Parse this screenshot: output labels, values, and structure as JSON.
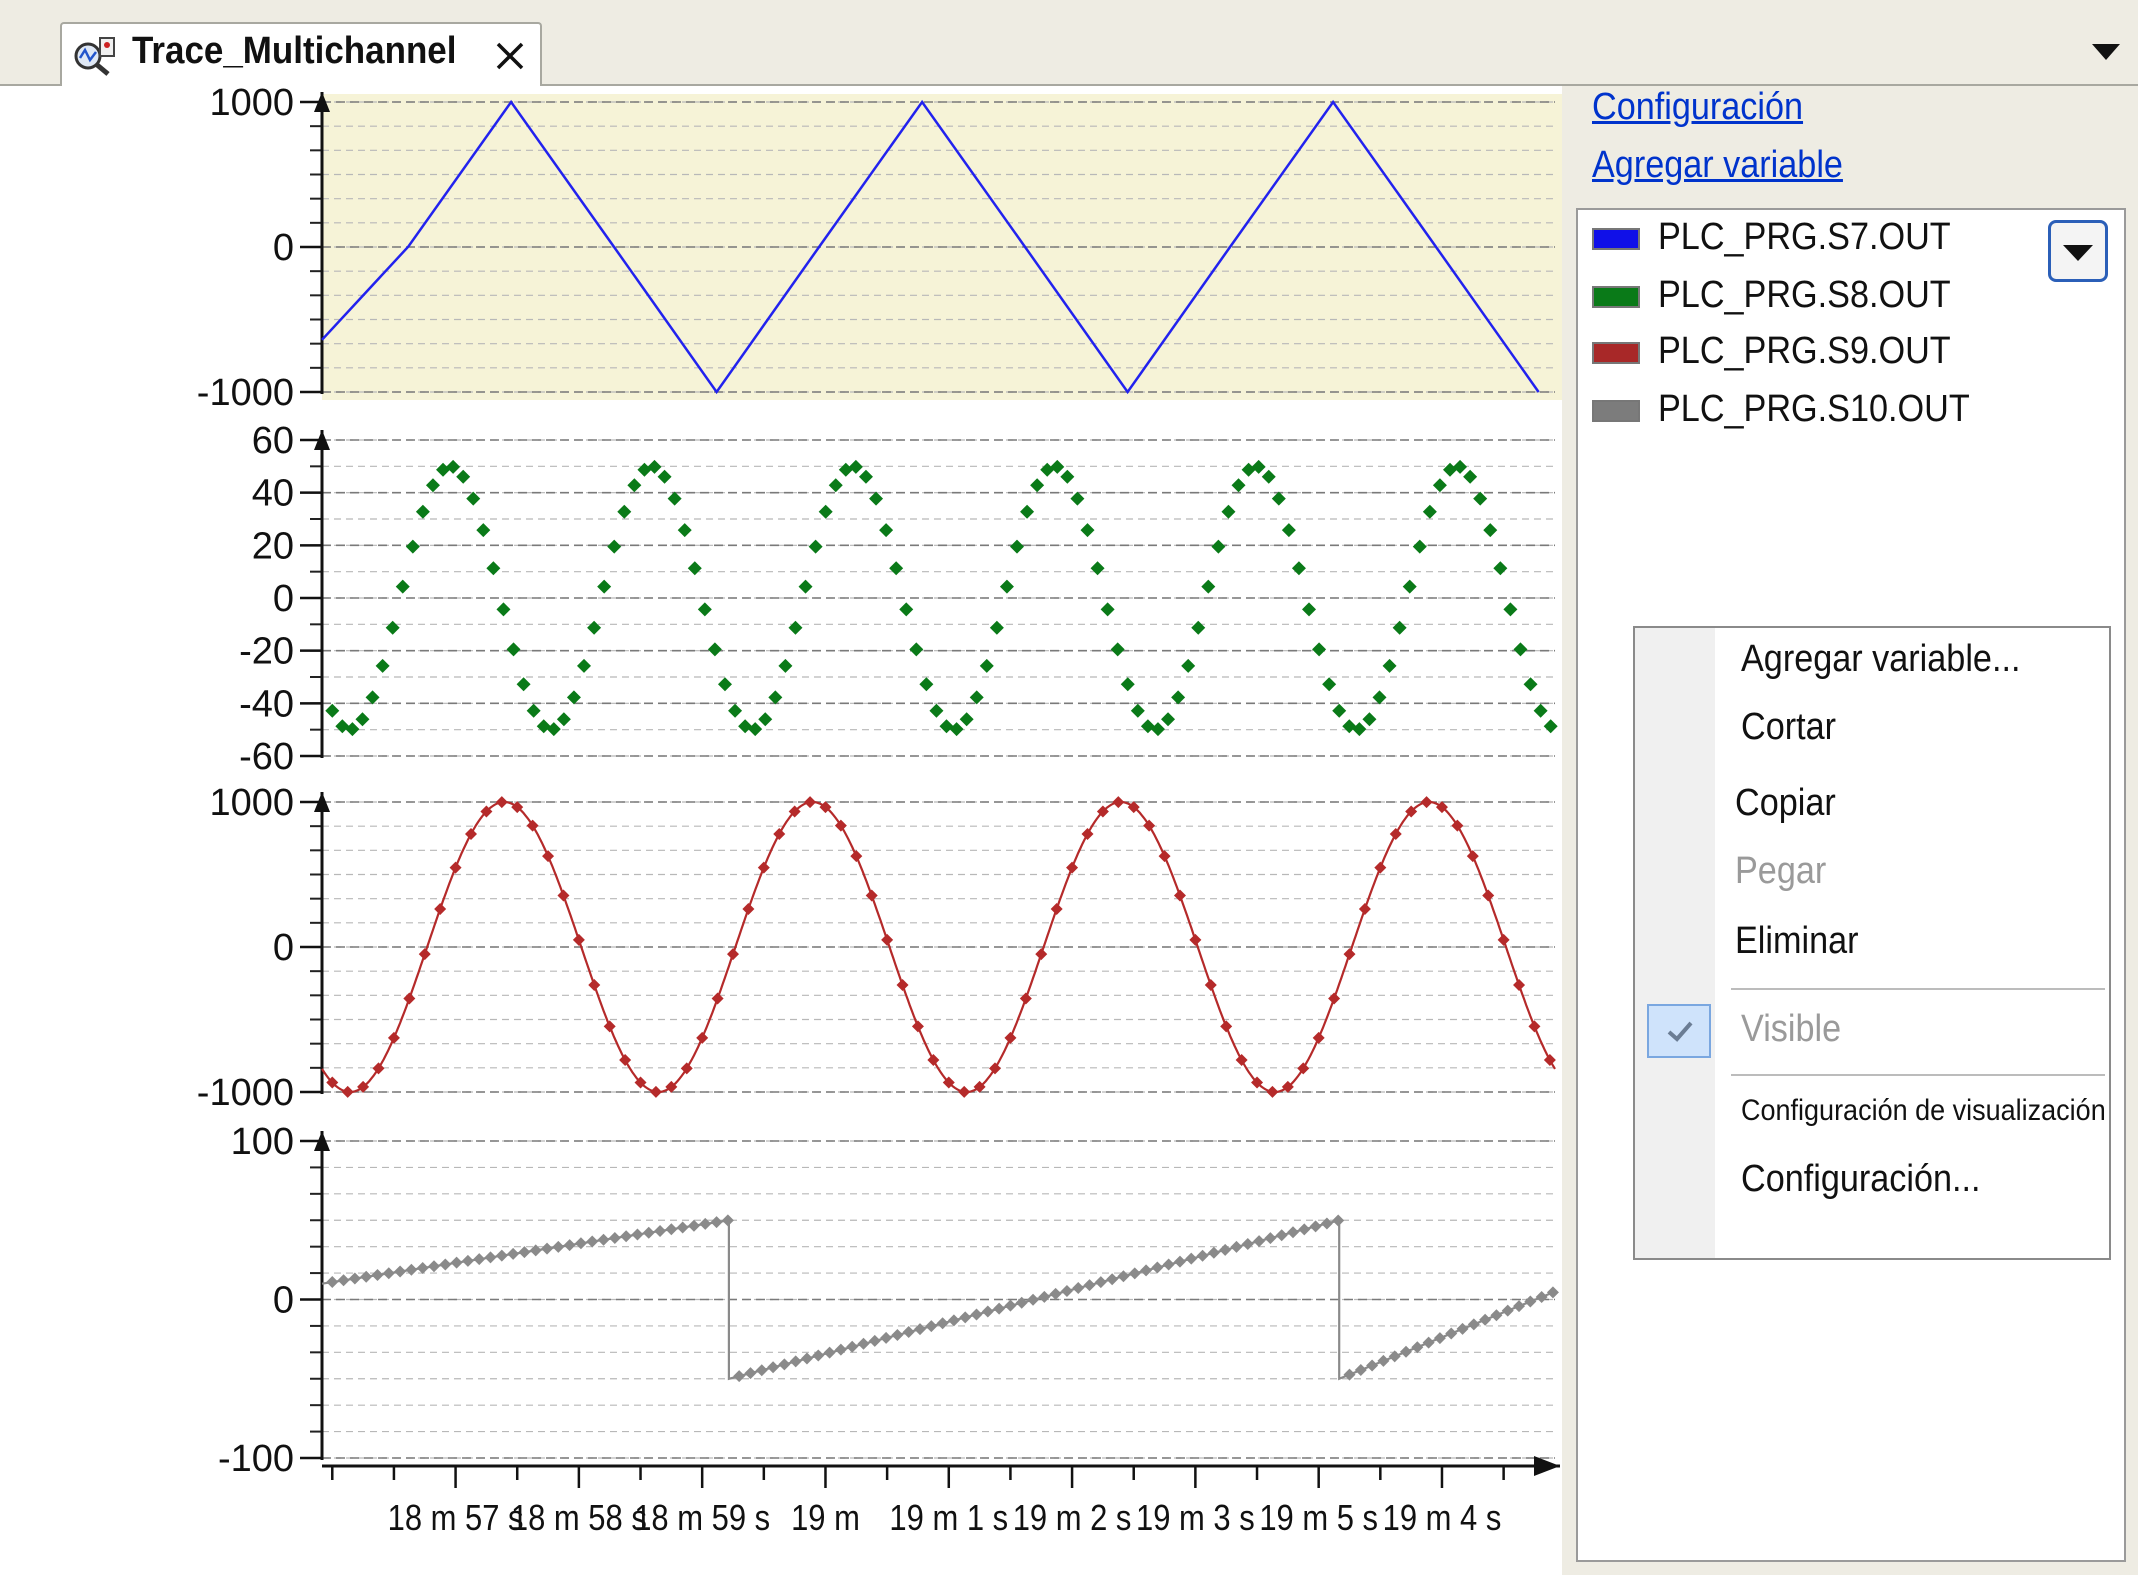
{
  "tab": {
    "title": "Trace_Multichannel",
    "icon": "trace-icon",
    "close_icon": "close-icon"
  },
  "sidebar": {
    "config_link": "Configuración",
    "add_var_link": "Agregar variable",
    "variables": [
      {
        "name": "PLC_PRG.S7.OUT",
        "color": "#1010e8"
      },
      {
        "name": "PLC_PRG.S8.OUT",
        "color": "#0a7a18"
      },
      {
        "name": "PLC_PRG.S9.OUT",
        "color": "#a82828"
      },
      {
        "name": "PLC_PRG.S10.OUT",
        "color": "#7c7c7c"
      }
    ]
  },
  "context_menu": {
    "add_variable": "Agregar variable...",
    "cut": "Cortar",
    "copy": "Copiar",
    "paste": "Pegar",
    "delete": "Eliminar",
    "visible": "Visible",
    "display_settings": "Configuración de visualización",
    "configuration": "Configuración..."
  },
  "colors": {
    "s7": "#2222ee",
    "s8": "#0a7a18",
    "s9": "#b52a2a",
    "s10": "#8a8a8a",
    "active_plot_bg": "#f6f3d7"
  },
  "chart_data": [
    {
      "type": "line",
      "series": [
        {
          "name": "PLC_PRG.S7.OUT"
        }
      ],
      "shape": "triangle",
      "ylim": [
        -1000,
        1000
      ],
      "yticks": [
        1000,
        0,
        -1000
      ],
      "x": [
        0,
        0.42,
        0.92,
        1.42,
        1.92,
        2.42,
        2.92,
        3.42,
        3.92,
        4.42,
        4.92,
        5.42,
        5.92
      ],
      "values": [
        -640,
        3,
        1000,
        3,
        -1000,
        3,
        1000,
        3,
        -1000,
        3,
        1000,
        3,
        -1000
      ]
    },
    {
      "type": "scatter",
      "series": [
        {
          "name": "PLC_PRG.S8.OUT"
        }
      ],
      "shape": "sine",
      "amplitude": 50,
      "period_s": 0.98,
      "ylim": [
        -60,
        60
      ],
      "yticks": [
        60,
        40,
        20,
        0,
        -20,
        -40,
        -60
      ]
    },
    {
      "type": "line",
      "series": [
        {
          "name": "PLC_PRG.S9.OUT"
        }
      ],
      "shape": "sine",
      "amplitude": 1000,
      "period_s": 1.5,
      "ylim": [
        -1000,
        1000
      ],
      "yticks": [
        1000,
        0,
        -1000
      ]
    },
    {
      "type": "line",
      "series": [
        {
          "name": "PLC_PRG.S10.OUT"
        }
      ],
      "shape": "sawtooth",
      "ylim": [
        -100,
        100
      ],
      "yticks": [
        100,
        0,
        -100
      ],
      "x": [
        0,
        1.98,
        1.98,
        4.95,
        4.95,
        6.0
      ],
      "values": [
        10,
        50,
        -50,
        50,
        -50,
        5
      ]
    }
  ],
  "x_axis": {
    "unit": "s",
    "range": [
      0,
      6.0
    ],
    "tick_labels": [
      {
        "label": "18 m 57 s",
        "x": 0.65
      },
      {
        "label": "18 m 58 s",
        "x": 1.25
      },
      {
        "label": "18 m 59 s",
        "x": 1.85
      },
      {
        "label": "19 m",
        "x": 2.45
      },
      {
        "label": "19 m 1 s",
        "x": 3.05
      },
      {
        "label": "19 m 2 s",
        "x": 3.65
      },
      {
        "label": "19 m 3 s",
        "x": 4.25
      },
      {
        "label": "19 m 5 s",
        "x": 4.85
      },
      {
        "label": "19 m 4 s",
        "x": 5.45
      }
    ]
  }
}
